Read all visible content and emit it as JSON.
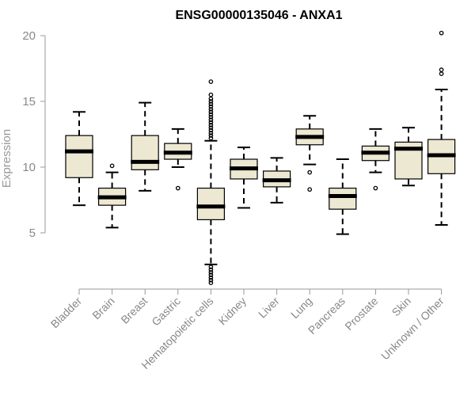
{
  "chart_data": {
    "type": "boxplot",
    "title": "ENSG00000135046 - ANXA1",
    "ylabel": "Expression",
    "xlabel": "",
    "ylim": [
      0.5,
      21
    ],
    "yticks": [
      5,
      10,
      15,
      20
    ],
    "box_fill": "#ede8d2",
    "box_stroke": "#000000",
    "categories": [
      "Bladder",
      "Brain",
      "Breast",
      "Gastric",
      "Hematopoietic cells",
      "Kidney",
      "Liver",
      "Lung",
      "Pancreas",
      "Prostate",
      "Skin",
      "Unknown / Other"
    ],
    "boxes": [
      {
        "name": "Bladder",
        "q1": 9.2,
        "median": 11.2,
        "q3": 12.4,
        "whisker_low": 7.1,
        "whisker_high": 14.2,
        "outliers": []
      },
      {
        "name": "Brain",
        "q1": 7.1,
        "median": 7.7,
        "q3": 8.4,
        "whisker_low": 5.4,
        "whisker_high": 9.6,
        "outliers": [
          10.1
        ]
      },
      {
        "name": "Breast",
        "q1": 9.8,
        "median": 10.4,
        "q3": 12.4,
        "whisker_low": 8.2,
        "whisker_high": 14.9,
        "outliers": []
      },
      {
        "name": "Gastric",
        "q1": 10.6,
        "median": 11.1,
        "q3": 11.8,
        "whisker_low": 10.0,
        "whisker_high": 12.9,
        "outliers": [
          8.4
        ]
      },
      {
        "name": "Hematopoietic cells",
        "q1": 6.0,
        "median": 7.0,
        "q3": 8.4,
        "whisker_low": 2.6,
        "whisker_high": 12.0,
        "outliers": [
          1.2,
          1.4,
          1.6,
          1.8,
          2.0,
          2.2,
          2.4,
          12.2,
          12.4,
          12.6,
          12.8,
          13.0,
          13.2,
          13.4,
          13.6,
          13.8,
          14.0,
          14.2,
          14.4,
          14.6,
          14.8,
          15.0,
          15.2,
          15.5,
          16.5
        ]
      },
      {
        "name": "Kidney",
        "q1": 9.1,
        "median": 9.9,
        "q3": 10.6,
        "whisker_low": 6.9,
        "whisker_high": 11.5,
        "outliers": []
      },
      {
        "name": "Liver",
        "q1": 8.5,
        "median": 9.0,
        "q3": 9.7,
        "whisker_low": 7.3,
        "whisker_high": 10.7,
        "outliers": []
      },
      {
        "name": "Lung",
        "q1": 11.7,
        "median": 12.3,
        "q3": 12.9,
        "whisker_low": 10.2,
        "whisker_high": 13.9,
        "outliers": [
          9.6,
          8.3
        ]
      },
      {
        "name": "Pancreas",
        "q1": 6.8,
        "median": 7.8,
        "q3": 8.4,
        "whisker_low": 4.9,
        "whisker_high": 10.6,
        "outliers": []
      },
      {
        "name": "Prostate",
        "q1": 10.5,
        "median": 11.1,
        "q3": 11.6,
        "whisker_low": 9.6,
        "whisker_high": 12.9,
        "outliers": [
          8.4
        ]
      },
      {
        "name": "Skin",
        "q1": 9.1,
        "median": 11.4,
        "q3": 11.9,
        "whisker_low": 8.6,
        "whisker_high": 13.0,
        "outliers": []
      },
      {
        "name": "Unknown / Other",
        "q1": 9.5,
        "median": 10.9,
        "q3": 12.1,
        "whisker_low": 5.6,
        "whisker_high": 15.9,
        "outliers": [
          17.1,
          17.4,
          20.2
        ]
      }
    ]
  }
}
